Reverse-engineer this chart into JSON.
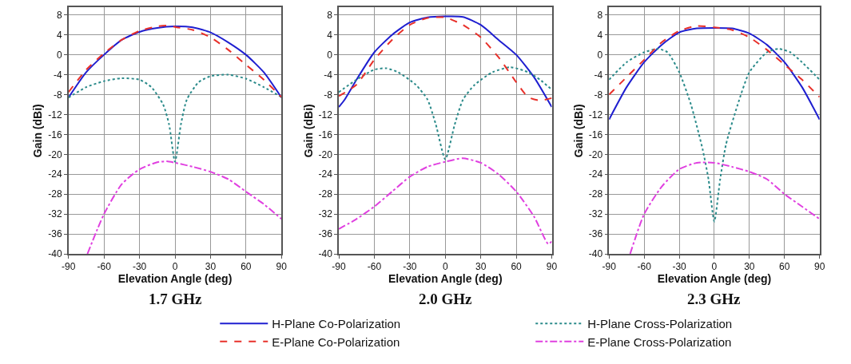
{
  "chart_data": [
    {
      "type": "line",
      "title": "1.7 GHz",
      "xlabel": "Elevation Angle (deg)",
      "ylabel": "Gain (dBi)",
      "xlim": [
        -90,
        90
      ],
      "xticks": [
        -90,
        -60,
        -30,
        0,
        30,
        60,
        90
      ],
      "ylim": [
        -40,
        9.5
      ],
      "yticks": [
        -40,
        -36,
        -32,
        -28,
        -24,
        -20,
        -16,
        -12,
        -8,
        -4,
        0,
        4,
        8
      ],
      "grid": true,
      "legend": "bottom",
      "marker": "none",
      "series": [
        {
          "name": "H-Plane Co-Polarization",
          "color": "#1f1fd0",
          "line_style": "solid",
          "x": [
            -90,
            -75,
            -60,
            -45,
            -30,
            -15,
            0,
            15,
            30,
            45,
            60,
            75,
            90
          ],
          "values": [
            -8.6,
            -3.5,
            0,
            3,
            4.6,
            5.4,
            5.7,
            5.5,
            4.5,
            2.5,
            0,
            -3.5,
            -8.6
          ]
        },
        {
          "name": "H-Plane Cross-Polarization",
          "color": "#2a8a8a",
          "line_style": "dotted",
          "x": [
            -90,
            -75,
            -60,
            -45,
            -30,
            -20,
            -10,
            -5,
            0,
            5,
            10,
            20,
            30,
            45,
            60,
            75,
            90
          ],
          "values": [
            -8.6,
            -6.5,
            -5.3,
            -4.7,
            -5,
            -6.5,
            -10,
            -14,
            -21.5,
            -14,
            -9,
            -5.5,
            -4.3,
            -4,
            -4.8,
            -6.5,
            -8.5
          ]
        },
        {
          "name": "E-Plane Co-Polarization",
          "color": "#e8302a",
          "line_style": "dashed",
          "x": [
            -90,
            -75,
            -60,
            -45,
            -30,
            -15,
            -5,
            0,
            15,
            30,
            45,
            60,
            75,
            90
          ],
          "values": [
            -7.5,
            -3,
            0.3,
            3,
            4.8,
            5.7,
            5.9,
            5.6,
            5,
            3.5,
            1,
            -2,
            -5,
            -8.5
          ]
        },
        {
          "name": "E-Plane Cross-Polarization",
          "color": "#e040e0",
          "line_style": "dashdot",
          "x": [
            -74,
            -60,
            -45,
            -30,
            -15,
            -7,
            0,
            15,
            30,
            45,
            60,
            75,
            90
          ],
          "values": [
            -40,
            -32,
            -26,
            -23,
            -21.6,
            -21.4,
            -21.7,
            -22.5,
            -23.5,
            -25,
            -27.5,
            -30,
            -33
          ]
        }
      ]
    },
    {
      "type": "line",
      "title": "2.0 GHz",
      "xlabel": "Elevation Angle (deg)",
      "ylabel": "Gain (dBi)",
      "xlim": [
        -90,
        90
      ],
      "xticks": [
        -90,
        -60,
        -30,
        0,
        30,
        60,
        90
      ],
      "ylim": [
        -40,
        9.5
      ],
      "yticks": [
        -40,
        -36,
        -32,
        -28,
        -24,
        -20,
        -16,
        -12,
        -8,
        -4,
        0,
        4,
        8
      ],
      "grid": true,
      "marker": "none",
      "series": [
        {
          "color": "#1f1fd0",
          "line_style": "solid",
          "x": [
            -90,
            -85,
            -75,
            -60,
            -45,
            -30,
            -15,
            0,
            15,
            30,
            45,
            60,
            75,
            90
          ],
          "values": [
            -10.5,
            -9,
            -5,
            0.5,
            4,
            6.5,
            7.5,
            7.7,
            7.6,
            6,
            3,
            0,
            -4.5,
            -10.5
          ]
        },
        {
          "color": "#2a8a8a",
          "line_style": "dotted",
          "x": [
            -90,
            -75,
            -60,
            -50,
            -40,
            -25,
            -15,
            -8,
            0,
            8,
            15,
            25,
            40,
            55,
            70,
            80,
            90
          ],
          "values": [
            -7.5,
            -5,
            -3,
            -2.7,
            -3.5,
            -6,
            -9,
            -14,
            -21,
            -14,
            -9,
            -6,
            -3.5,
            -2.5,
            -3.5,
            -5,
            -7
          ]
        },
        {
          "color": "#e8302a",
          "line_style": "dashed",
          "x": [
            -90,
            -75,
            -60,
            -45,
            -30,
            -15,
            0,
            15,
            30,
            45,
            60,
            70,
            80,
            90
          ],
          "values": [
            -8.3,
            -6,
            -1,
            3,
            6,
            7.4,
            7.5,
            6,
            3.5,
            -0.5,
            -5.5,
            -8.5,
            -9.2,
            -8.7
          ]
        },
        {
          "color": "#e040e0",
          "line_style": "dashdot",
          "x": [
            -90,
            -75,
            -60,
            -45,
            -30,
            -15,
            0,
            15,
            30,
            45,
            60,
            75,
            87,
            90
          ],
          "values": [
            -35,
            -33,
            -30.5,
            -27.5,
            -24.5,
            -22.5,
            -21.5,
            -20.8,
            -21.7,
            -24,
            -27.5,
            -32.5,
            -38,
            -37.5
          ]
        }
      ]
    },
    {
      "type": "line",
      "title": "2.3 GHz",
      "xlabel": "Elevation Angle (deg)",
      "ylabel": "Gain (dBi)",
      "xlim": [
        -90,
        90
      ],
      "xticks": [
        -90,
        -60,
        -30,
        0,
        30,
        60,
        90
      ],
      "ylim": [
        -40,
        9.5
      ],
      "yticks": [
        -40,
        -36,
        -32,
        -28,
        -24,
        -20,
        -16,
        -12,
        -8,
        -4,
        0,
        4,
        8
      ],
      "grid": true,
      "marker": "none",
      "series": [
        {
          "color": "#1f1fd0",
          "line_style": "solid",
          "x": [
            -90,
            -75,
            -60,
            -45,
            -30,
            -15,
            0,
            15,
            30,
            45,
            60,
            75,
            90
          ],
          "values": [
            -13,
            -6.5,
            -1.5,
            2,
            4.5,
            5.3,
            5.4,
            5.3,
            4.3,
            2,
            -1.5,
            -6.5,
            -13
          ]
        },
        {
          "color": "#2a8a8a",
          "line_style": "dotted",
          "x": [
            -90,
            -75,
            -60,
            -48,
            -40,
            -30,
            -20,
            -10,
            -5,
            0,
            5,
            10,
            20,
            30,
            45,
            55,
            65,
            75,
            90
          ],
          "values": [
            -5,
            -1.5,
            0.5,
            1.2,
            0.5,
            -3.5,
            -10,
            -19,
            -25,
            -33.5,
            -25,
            -18,
            -10,
            -3.5,
            0.5,
            1.2,
            0.5,
            -1.5,
            -5
          ]
        },
        {
          "color": "#e8302a",
          "line_style": "dashed",
          "x": [
            -90,
            -75,
            -60,
            -45,
            -30,
            -15,
            0,
            15,
            30,
            45,
            60,
            75,
            90
          ],
          "values": [
            -8,
            -4.5,
            -1,
            2.5,
            4.8,
            5.8,
            5.5,
            5,
            3.5,
            1,
            -2,
            -5,
            -8.5
          ]
        },
        {
          "color": "#e040e0",
          "line_style": "dashdot",
          "x": [
            -72,
            -60,
            -45,
            -30,
            -15,
            0,
            15,
            30,
            45,
            60,
            75,
            90
          ],
          "values": [
            -40,
            -32,
            -26.5,
            -23,
            -21.7,
            -21.7,
            -22.5,
            -23.5,
            -25,
            -28,
            -30.5,
            -33
          ]
        }
      ]
    }
  ]
}
